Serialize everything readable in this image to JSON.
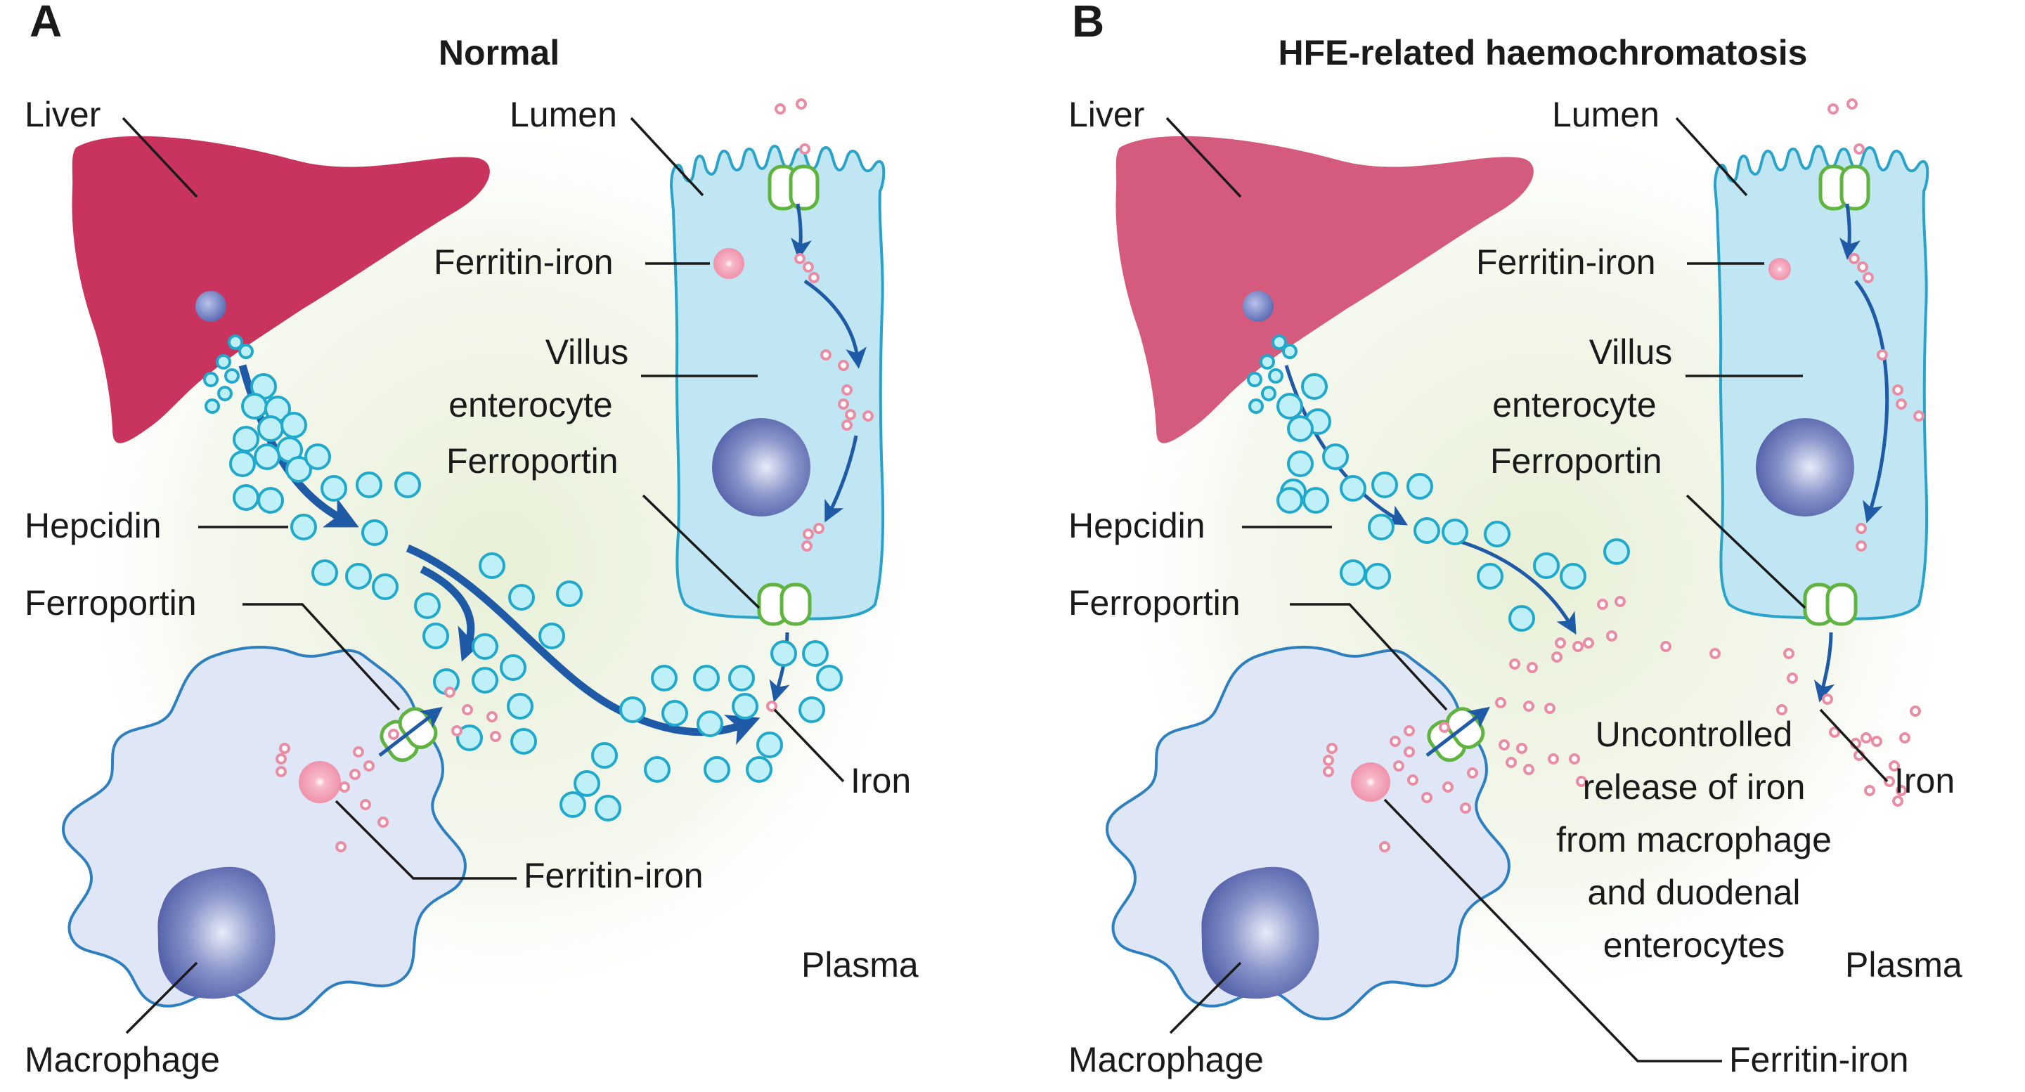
{
  "panel_a": {
    "letter": "A",
    "title": "Normal",
    "labels": {
      "liver": "Liver",
      "lumen": "Lumen",
      "ferritin_iron_enterocyte": "Ferritin-iron",
      "villus_enterocyte_line1": "Villus",
      "villus_enterocyte_line2": "enterocyte",
      "ferroportin_enterocyte": "Ferroportin",
      "hepcidin": "Hepcidin",
      "ferroportin_macrophage": "Ferroportin",
      "iron": "Iron",
      "ferritin_iron_macrophage": "Ferritin-iron",
      "plasma": "Plasma",
      "macrophage": "Macrophage"
    }
  },
  "panel_b": {
    "letter": "B",
    "title": "HFE-related haemochromatosis",
    "labels": {
      "liver": "Liver",
      "lumen": "Lumen",
      "ferritin_iron_enterocyte": "Ferritin-iron",
      "villus_enterocyte_line1": "Villus",
      "villus_enterocyte_line2": "enterocyte",
      "ferroportin_enterocyte": "Ferroportin",
      "hepcidin": "Hepcidin",
      "ferroportin_macrophage": "Ferroportin",
      "iron": "Iron",
      "ferritin_iron_macrophage": "Ferritin-iron",
      "plasma": "Plasma",
      "macrophage": "Macrophage",
      "uncontrolled_release": [
        "Uncontrolled",
        "release of iron",
        "from macrophage",
        "and duodenal",
        "enterocytes"
      ]
    }
  },
  "colors": {
    "liver": "#c8345e",
    "liver_b": "#d45a7e",
    "enterocyte_fill": "#bfe6f2",
    "enterocyte_stroke": "#29a3c9",
    "macrophage_fill": "#dfe6f5",
    "macrophage_stroke": "#2e7fbf",
    "nucleus": "#6b78b8",
    "hepcidin_fill": "#bff0f8",
    "hepcidin_stroke": "#21a9cc",
    "iron_stroke": "#e98da5",
    "ferroportin": "#5fb33f",
    "arrow": "#1f5aa6"
  }
}
